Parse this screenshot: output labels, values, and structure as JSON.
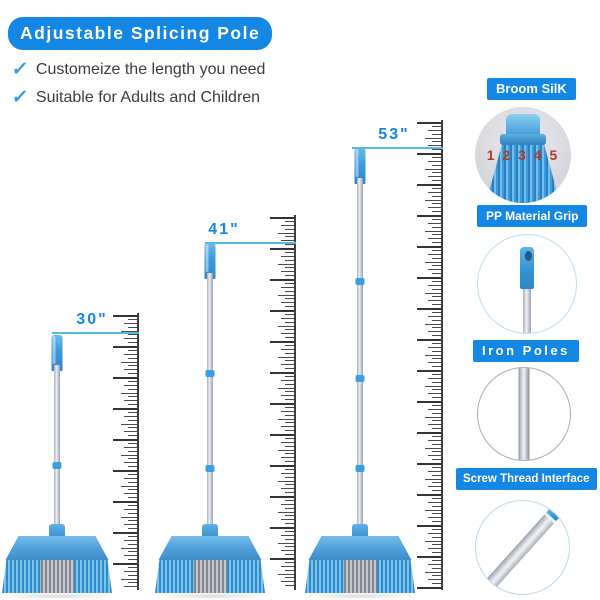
{
  "header": {
    "title": "Adjustable Splicing Pole",
    "features": [
      {
        "check": "✓",
        "label": "Customeize the length you need"
      },
      {
        "check": "✓",
        "label": "Suitable for Adults and Children"
      }
    ]
  },
  "brooms": [
    {
      "label": "30\""
    },
    {
      "label": "41\""
    },
    {
      "label": "53\""
    }
  ],
  "callouts": [
    {
      "label": "Broom SilK",
      "numbers": "1 2 3 4 5"
    },
    {
      "label": "PP Material Grip"
    },
    {
      "label": "Iron Poles"
    },
    {
      "label": "Screw Thread Interface"
    }
  ],
  "colors": {
    "banner_blue": "#1486E4",
    "measure_line_blue": "#55B8E8",
    "check_blue": "#2F9ED6",
    "body_text": "#3C3C3C",
    "broom_plastic_blue": "#4F9FDA",
    "bristle_gray": "#9A9BA2",
    "silk_numbers_red": "#B03A30",
    "pole_silver": "#C9CDD4"
  }
}
